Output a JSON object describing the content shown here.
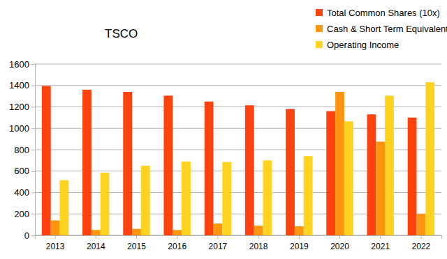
{
  "chart_data": {
    "type": "bar",
    "title": "TSCO",
    "categories": [
      "2013",
      "2014",
      "2015",
      "2016",
      "2017",
      "2018",
      "2019",
      "2020",
      "2021",
      "2022"
    ],
    "series": [
      {
        "name": "Total Common Shares (10x)",
        "color": "#ff420e",
        "values": [
          1395,
          1360,
          1340,
          1305,
          1250,
          1215,
          1180,
          1160,
          1130,
          1100
        ]
      },
      {
        "name": "Cash & Short Term Equivalents",
        "color": "#ff950e",
        "values": [
          140,
          50,
          60,
          50,
          110,
          90,
          85,
          1340,
          875,
          200
        ]
      },
      {
        "name": "Operating Income",
        "color": "#ffd320",
        "values": [
          515,
          585,
          650,
          690,
          685,
          700,
          740,
          1065,
          1305,
          1430
        ]
      }
    ],
    "ylim": [
      0,
      1600
    ],
    "yticks": [
      0,
      200,
      400,
      600,
      800,
      1000,
      1200,
      1400,
      1600
    ],
    "grid": true,
    "legend": "top-right"
  }
}
